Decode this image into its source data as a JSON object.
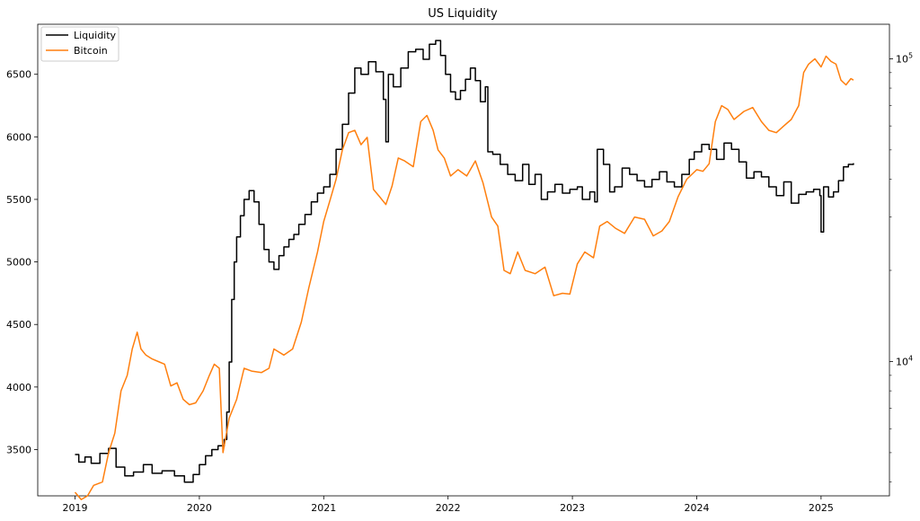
{
  "chart_data": {
    "type": "line",
    "title": "US Liquidity",
    "xlabel": "",
    "ylabel": "",
    "x_ticks": [
      "2019",
      "2020",
      "2021",
      "2022",
      "2023",
      "2024",
      "2025"
    ],
    "y_left_ticks": [
      "3500",
      "4000",
      "4500",
      "5000",
      "5500",
      "6000",
      "6500"
    ],
    "y_right_ticks": [
      {
        "base": "10",
        "exp": "4"
      },
      {
        "base": "10",
        "exp": "5"
      }
    ],
    "xlim": [
      2018.7,
      2025.55
    ],
    "ylim_left": [
      3130,
      6900
    ],
    "ylim_right": [
      3600,
      130000
    ],
    "y_right_scale": "log",
    "grid": false,
    "legend_position": "top-left",
    "series": [
      {
        "name": "Liquidity",
        "color": "#000000",
        "axis": "left",
        "step": true,
        "points": [
          [
            2019.0,
            3460
          ],
          [
            2019.03,
            3400
          ],
          [
            2019.08,
            3440
          ],
          [
            2019.13,
            3390
          ],
          [
            2019.2,
            3470
          ],
          [
            2019.27,
            3510
          ],
          [
            2019.33,
            3360
          ],
          [
            2019.4,
            3290
          ],
          [
            2019.47,
            3320
          ],
          [
            2019.55,
            3380
          ],
          [
            2019.62,
            3310
          ],
          [
            2019.7,
            3330
          ],
          [
            2019.8,
            3290
          ],
          [
            2019.88,
            3240
          ],
          [
            2019.95,
            3300
          ],
          [
            2020.0,
            3380
          ],
          [
            2020.05,
            3450
          ],
          [
            2020.1,
            3500
          ],
          [
            2020.15,
            3530
          ],
          [
            2020.2,
            3580
          ],
          [
            2020.22,
            3800
          ],
          [
            2020.24,
            4200
          ],
          [
            2020.26,
            4700
          ],
          [
            2020.28,
            5000
          ],
          [
            2020.3,
            5200
          ],
          [
            2020.33,
            5370
          ],
          [
            2020.36,
            5500
          ],
          [
            2020.4,
            5570
          ],
          [
            2020.44,
            5480
          ],
          [
            2020.48,
            5300
          ],
          [
            2020.52,
            5100
          ],
          [
            2020.56,
            5000
          ],
          [
            2020.6,
            4940
          ],
          [
            2020.64,
            5050
          ],
          [
            2020.68,
            5120
          ],
          [
            2020.72,
            5180
          ],
          [
            2020.76,
            5220
          ],
          [
            2020.8,
            5300
          ],
          [
            2020.85,
            5380
          ],
          [
            2020.9,
            5480
          ],
          [
            2020.95,
            5550
          ],
          [
            2021.0,
            5600
          ],
          [
            2021.05,
            5700
          ],
          [
            2021.1,
            5900
          ],
          [
            2021.15,
            6100
          ],
          [
            2021.2,
            6350
          ],
          [
            2021.25,
            6550
          ],
          [
            2021.3,
            6500
          ],
          [
            2021.36,
            6600
          ],
          [
            2021.42,
            6520
          ],
          [
            2021.48,
            6300
          ],
          [
            2021.5,
            5960
          ],
          [
            2021.52,
            6500
          ],
          [
            2021.56,
            6400
          ],
          [
            2021.62,
            6550
          ],
          [
            2021.68,
            6680
          ],
          [
            2021.74,
            6700
          ],
          [
            2021.8,
            6620
          ],
          [
            2021.85,
            6740
          ],
          [
            2021.9,
            6770
          ],
          [
            2021.94,
            6650
          ],
          [
            2021.98,
            6500
          ],
          [
            2022.02,
            6360
          ],
          [
            2022.06,
            6300
          ],
          [
            2022.1,
            6370
          ],
          [
            2022.14,
            6460
          ],
          [
            2022.18,
            6550
          ],
          [
            2022.22,
            6450
          ],
          [
            2022.26,
            6280
          ],
          [
            2022.3,
            6400
          ],
          [
            2022.32,
            5880
          ],
          [
            2022.36,
            5860
          ],
          [
            2022.42,
            5780
          ],
          [
            2022.48,
            5700
          ],
          [
            2022.54,
            5650
          ],
          [
            2022.6,
            5780
          ],
          [
            2022.65,
            5620
          ],
          [
            2022.7,
            5700
          ],
          [
            2022.75,
            5500
          ],
          [
            2022.8,
            5560
          ],
          [
            2022.86,
            5620
          ],
          [
            2022.92,
            5550
          ],
          [
            2022.98,
            5580
          ],
          [
            2023.04,
            5600
          ],
          [
            2023.08,
            5500
          ],
          [
            2023.14,
            5560
          ],
          [
            2023.18,
            5480
          ],
          [
            2023.2,
            5900
          ],
          [
            2023.25,
            5780
          ],
          [
            2023.3,
            5560
          ],
          [
            2023.34,
            5600
          ],
          [
            2023.4,
            5750
          ],
          [
            2023.46,
            5700
          ],
          [
            2023.52,
            5650
          ],
          [
            2023.58,
            5600
          ],
          [
            2023.64,
            5660
          ],
          [
            2023.7,
            5720
          ],
          [
            2023.76,
            5640
          ],
          [
            2023.82,
            5600
          ],
          [
            2023.88,
            5700
          ],
          [
            2023.94,
            5820
          ],
          [
            2023.98,
            5880
          ],
          [
            2024.04,
            5940
          ],
          [
            2024.1,
            5900
          ],
          [
            2024.16,
            5820
          ],
          [
            2024.22,
            5950
          ],
          [
            2024.28,
            5900
          ],
          [
            2024.34,
            5800
          ],
          [
            2024.4,
            5670
          ],
          [
            2024.46,
            5720
          ],
          [
            2024.52,
            5680
          ],
          [
            2024.58,
            5600
          ],
          [
            2024.64,
            5530
          ],
          [
            2024.7,
            5640
          ],
          [
            2024.76,
            5470
          ],
          [
            2024.82,
            5540
          ],
          [
            2024.88,
            5560
          ],
          [
            2024.94,
            5580
          ],
          [
            2024.99,
            5530
          ],
          [
            2025.0,
            5240
          ],
          [
            2025.02,
            5600
          ],
          [
            2025.06,
            5520
          ],
          [
            2025.1,
            5560
          ],
          [
            2025.14,
            5650
          ],
          [
            2025.18,
            5760
          ],
          [
            2025.22,
            5780
          ],
          [
            2025.26,
            5790
          ]
        ]
      },
      {
        "name": "Bitcoin",
        "color": "#ff7f0e",
        "axis": "right",
        "step": false,
        "points": [
          [
            2019.0,
            3700
          ],
          [
            2019.05,
            3500
          ],
          [
            2019.1,
            3600
          ],
          [
            2019.15,
            3900
          ],
          [
            2019.22,
            4000
          ],
          [
            2019.27,
            5000
          ],
          [
            2019.32,
            5800
          ],
          [
            2019.37,
            8000
          ],
          [
            2019.42,
            9000
          ],
          [
            2019.46,
            11000
          ],
          [
            2019.5,
            12500
          ],
          [
            2019.53,
            11000
          ],
          [
            2019.57,
            10500
          ],
          [
            2019.62,
            10200
          ],
          [
            2019.67,
            10000
          ],
          [
            2019.72,
            9800
          ],
          [
            2019.77,
            8300
          ],
          [
            2019.82,
            8500
          ],
          [
            2019.87,
            7500
          ],
          [
            2019.92,
            7200
          ],
          [
            2019.97,
            7300
          ],
          [
            2020.03,
            8000
          ],
          [
            2020.08,
            9000
          ],
          [
            2020.12,
            9800
          ],
          [
            2020.16,
            9500
          ],
          [
            2020.19,
            5000
          ],
          [
            2020.24,
            6500
          ],
          [
            2020.3,
            7500
          ],
          [
            2020.36,
            9500
          ],
          [
            2020.42,
            9300
          ],
          [
            2020.5,
            9200
          ],
          [
            2020.56,
            9500
          ],
          [
            2020.6,
            11000
          ],
          [
            2020.68,
            10500
          ],
          [
            2020.75,
            11000
          ],
          [
            2020.82,
            13500
          ],
          [
            2020.88,
            17500
          ],
          [
            2020.95,
            23000
          ],
          [
            2021.0,
            29000
          ],
          [
            2021.05,
            34000
          ],
          [
            2021.1,
            40000
          ],
          [
            2021.15,
            50000
          ],
          [
            2021.2,
            57000
          ],
          [
            2021.25,
            58000
          ],
          [
            2021.3,
            52000
          ],
          [
            2021.35,
            55000
          ],
          [
            2021.4,
            37000
          ],
          [
            2021.45,
            35000
          ],
          [
            2021.5,
            33000
          ],
          [
            2021.55,
            38000
          ],
          [
            2021.6,
            47000
          ],
          [
            2021.65,
            46000
          ],
          [
            2021.72,
            44000
          ],
          [
            2021.78,
            62000
          ],
          [
            2021.83,
            65000
          ],
          [
            2021.88,
            58000
          ],
          [
            2021.92,
            50000
          ],
          [
            2021.97,
            47000
          ],
          [
            2022.02,
            41000
          ],
          [
            2022.08,
            43000
          ],
          [
            2022.15,
            41000
          ],
          [
            2022.22,
            46000
          ],
          [
            2022.28,
            39000
          ],
          [
            2022.35,
            30000
          ],
          [
            2022.4,
            28000
          ],
          [
            2022.45,
            20000
          ],
          [
            2022.5,
            19500
          ],
          [
            2022.56,
            23000
          ],
          [
            2022.62,
            20000
          ],
          [
            2022.7,
            19500
          ],
          [
            2022.78,
            20500
          ],
          [
            2022.85,
            16500
          ],
          [
            2022.92,
            16800
          ],
          [
            2022.98,
            16700
          ],
          [
            2023.04,
            21000
          ],
          [
            2023.1,
            23000
          ],
          [
            2023.17,
            22000
          ],
          [
            2023.22,
            28000
          ],
          [
            2023.28,
            29000
          ],
          [
            2023.35,
            27500
          ],
          [
            2023.42,
            26500
          ],
          [
            2023.5,
            30000
          ],
          [
            2023.58,
            29500
          ],
          [
            2023.65,
            26000
          ],
          [
            2023.72,
            27000
          ],
          [
            2023.78,
            29000
          ],
          [
            2023.85,
            35000
          ],
          [
            2023.92,
            40000
          ],
          [
            2024.0,
            43000
          ],
          [
            2024.05,
            42500
          ],
          [
            2024.1,
            45000
          ],
          [
            2024.15,
            62000
          ],
          [
            2024.2,
            70000
          ],
          [
            2024.25,
            68000
          ],
          [
            2024.3,
            63000
          ],
          [
            2024.38,
            67000
          ],
          [
            2024.45,
            69000
          ],
          [
            2024.52,
            62000
          ],
          [
            2024.58,
            58000
          ],
          [
            2024.64,
            57000
          ],
          [
            2024.7,
            60000
          ],
          [
            2024.76,
            63000
          ],
          [
            2024.82,
            70000
          ],
          [
            2024.86,
            90000
          ],
          [
            2024.9,
            96000
          ],
          [
            2024.95,
            100000
          ],
          [
            2025.0,
            94000
          ],
          [
            2025.04,
            102000
          ],
          [
            2025.08,
            98000
          ],
          [
            2025.12,
            96000
          ],
          [
            2025.16,
            85000
          ],
          [
            2025.2,
            82000
          ],
          [
            2025.24,
            86000
          ],
          [
            2025.26,
            85000
          ]
        ]
      }
    ]
  }
}
